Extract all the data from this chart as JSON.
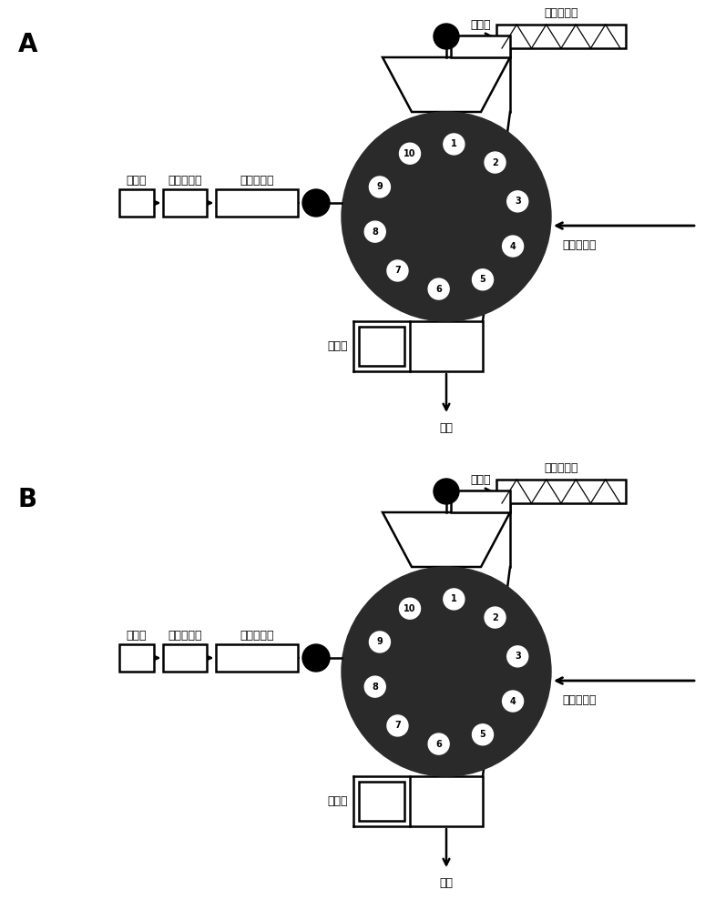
{
  "valve_color": "#2a2a2a",
  "panel_labels": [
    "A",
    "B"
  ],
  "label_ms": "质谱仪",
  "label_uv": "紫外检测器",
  "label_rp": "反相色谱柱",
  "label_affinity": "亲和色谱柱",
  "label_loop": "定量环",
  "label_pump": "二维液相泵",
  "label_waste": "废液",
  "port_numbers": [
    "1",
    "2",
    "3",
    "4",
    "5",
    "6",
    "7",
    "8",
    "9",
    "10"
  ],
  "port_angles_deg": [
    84,
    48,
    12,
    -24,
    -60,
    -96,
    -132,
    -168,
    -204,
    -240
  ],
  "lw": 1.8,
  "fs_label": 9,
  "fs_panel": 20,
  "fs_port": 7
}
